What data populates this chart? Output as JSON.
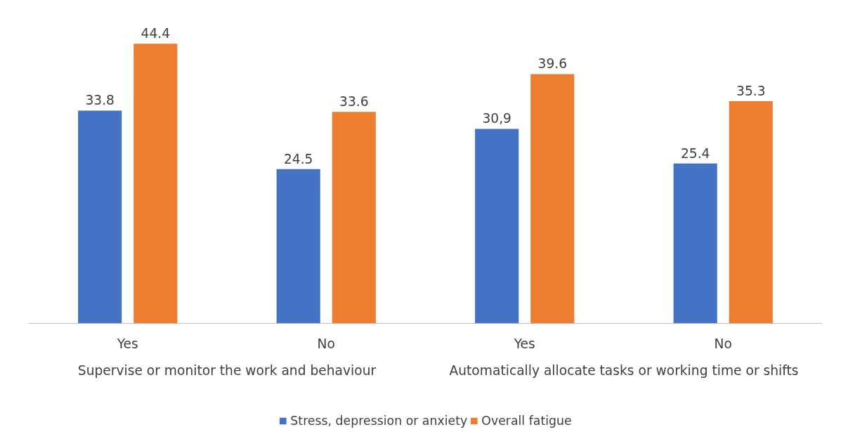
{
  "chart_data": {
    "type": "bar",
    "categories": [
      "Yes",
      "No",
      "Yes",
      "No"
    ],
    "series": [
      {
        "name": "Stress, depression or anxiety",
        "color": "#4472c4",
        "values": [
          33.8,
          24.5,
          30.9,
          25.4
        ],
        "value_labels": [
          "33.8",
          "24.5",
          "30,9",
          "25.4"
        ]
      },
      {
        "name": "Overall fatigue",
        "color": "#ed7d31",
        "values": [
          44.4,
          33.6,
          39.6,
          35.3
        ],
        "value_labels": [
          "44.4",
          "33.6",
          "39.6",
          "35.3"
        ]
      }
    ],
    "annotations": [
      "Supervise or monitor the work and behaviour",
      "Automatically allocate tasks or working time or shifts"
    ],
    "legend": "bottom"
  }
}
